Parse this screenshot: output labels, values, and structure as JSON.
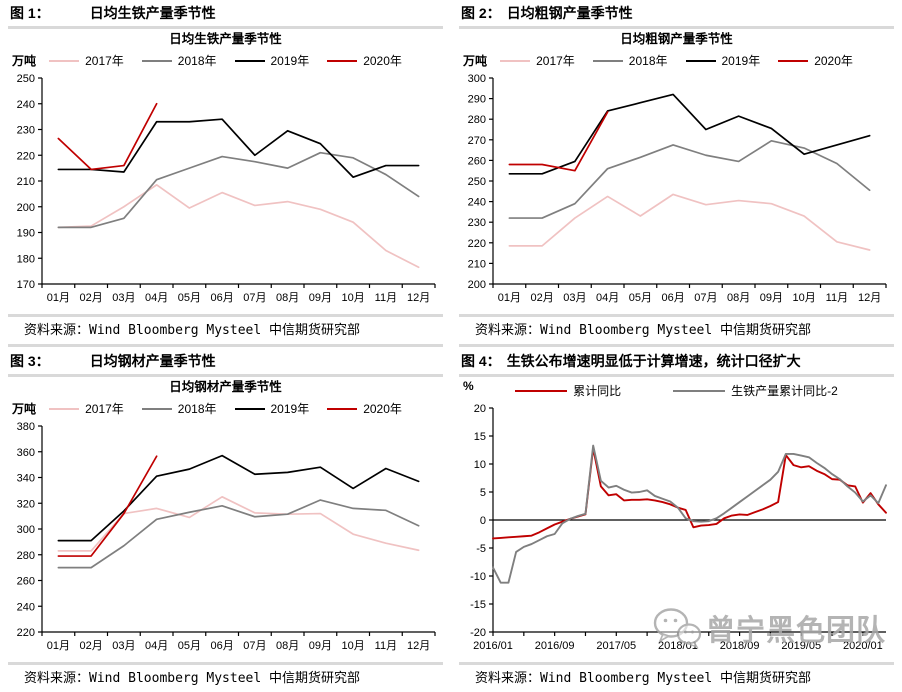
{
  "watermark": {
    "text": "曾宁黑色团队",
    "icon": "wechat-icon",
    "color": "#a8a8a8"
  },
  "colors": {
    "divider": "#d9d9d9",
    "axis": "#000000",
    "pink_2017": "#f0c2c2",
    "gray_2018": "#7f7f7f",
    "black_2019": "#000000",
    "red_2020": "#c00000"
  },
  "figures": [
    {
      "label": "图 1：",
      "title": "日均生铁产量季节性",
      "source": "资料来源：Wind Bloomberg Mysteel 中信期货研究部"
    },
    {
      "label": "图 2：",
      "title": "日均粗钢产量季节性",
      "source": "资料来源：Wind Bloomberg Mysteel 中信期货研究部"
    },
    {
      "label": "图 3：",
      "title": "日均钢材产量季节性",
      "source": "资料来源：Wind Bloomberg Mysteel 中信期货研究部"
    },
    {
      "label": "图 4：",
      "title": "生铁公布增速明显低于计算增速，统计口径扩大",
      "source": "资料来源：Wind Bloomberg Mysteel 中信期货研究部"
    }
  ],
  "chart_data": [
    {
      "type": "line",
      "title": "日均生铁产量季节性",
      "unit": "万吨",
      "ylim": [
        170,
        250
      ],
      "y_step": 10,
      "grid": false,
      "legend_position": "top",
      "categories": [
        "01月",
        "02月",
        "03月",
        "04月",
        "05月",
        "06月",
        "07月",
        "08月",
        "09月",
        "10月",
        "11月",
        "12月"
      ],
      "series": [
        {
          "name": "2017年",
          "color": "#f0c2c2",
          "values": [
            192,
            192.5,
            200,
            208.5,
            199.5,
            205.5,
            200.5,
            202,
            199,
            194,
            183,
            176.5
          ]
        },
        {
          "name": "2018年",
          "color": "#7f7f7f",
          "values": [
            192,
            192,
            195.5,
            210.5,
            215,
            219.5,
            217.5,
            215,
            221,
            219,
            212.5,
            204
          ]
        },
        {
          "name": "2019年",
          "color": "#000000",
          "values": [
            214.5,
            214.5,
            213.5,
            233,
            233,
            234,
            220,
            229.5,
            224.5,
            211.5,
            216,
            216
          ]
        },
        {
          "name": "2020年",
          "color": "#c00000",
          "values": [
            226.5,
            214.5,
            216,
            240
          ]
        }
      ]
    },
    {
      "type": "line",
      "title": "日均粗钢产量季节性",
      "unit": "万吨",
      "ylim": [
        200,
        300
      ],
      "y_step": 10,
      "grid": false,
      "legend_position": "top",
      "categories": [
        "01月",
        "02月",
        "03月",
        "04月",
        "05月",
        "06月",
        "07月",
        "08月",
        "09月",
        "10月",
        "11月",
        "12月"
      ],
      "series": [
        {
          "name": "2017年",
          "color": "#f0c2c2",
          "values": [
            218.5,
            218.5,
            232,
            242.5,
            233,
            243.5,
            238.5,
            240.5,
            239,
            233,
            220.5,
            216.5
          ]
        },
        {
          "name": "2018年",
          "color": "#7f7f7f",
          "values": [
            232,
            232,
            239,
            256,
            261.5,
            267.5,
            262.5,
            259.5,
            269.5,
            266,
            258.5,
            245.5
          ]
        },
        {
          "name": "2019年",
          "color": "#000000",
          "values": [
            253.5,
            253.5,
            259.5,
            284,
            288,
            292,
            275,
            281.5,
            275.5,
            263,
            267.5,
            272
          ]
        },
        {
          "name": "2020年",
          "color": "#c00000",
          "values": [
            258,
            258,
            255,
            283.5
          ]
        }
      ]
    },
    {
      "type": "line",
      "title": "日均钢材产量季节性",
      "unit": "万吨",
      "ylim": [
        220,
        380
      ],
      "y_step": 20,
      "grid": false,
      "legend_position": "top",
      "categories": [
        "01月",
        "02月",
        "03月",
        "04月",
        "05月",
        "06月",
        "07月",
        "08月",
        "09月",
        "10月",
        "11月",
        "12月"
      ],
      "series": [
        {
          "name": "2017年",
          "color": "#f0c2c2",
          "values": [
            283,
            283,
            312,
            316,
            309,
            325,
            312.5,
            311.5,
            312,
            296,
            289,
            283.5
          ]
        },
        {
          "name": "2018年",
          "color": "#7f7f7f",
          "values": [
            270,
            270,
            287,
            307.5,
            313,
            318,
            309.5,
            311.5,
            322.5,
            316,
            314.5,
            302.5
          ]
        },
        {
          "name": "2019年",
          "color": "#000000",
          "values": [
            291,
            291,
            314,
            341,
            346.5,
            357,
            342.5,
            344,
            348,
            331.5,
            347,
            337
          ]
        },
        {
          "name": "2020年",
          "color": "#c00000",
          "values": [
            279,
            279,
            312,
            356.5
          ]
        }
      ]
    },
    {
      "type": "line",
      "title": null,
      "unit": "%",
      "ylim": [
        -20,
        20
      ],
      "y_step": 5,
      "grid": false,
      "zero_line": true,
      "legend_position": "top",
      "n_points": 52,
      "x_minor_tick_every": 4,
      "x_labels": [
        "2016/01",
        "2016/09",
        "2017/05",
        "2018/01",
        "2018/09",
        "2019/05",
        "2020/01"
      ],
      "x_label_indices": [
        0,
        8,
        16,
        24,
        32,
        40,
        48
      ],
      "series": [
        {
          "name": "累计同比",
          "color": "#c00000",
          "width": 1.9,
          "values": [
            -3.3,
            -3.2,
            -3.1,
            -3.0,
            -2.9,
            -2.8,
            -2.2,
            -1.5,
            -0.8,
            -0.3,
            0.2,
            0.6,
            1.0,
            12.8,
            6.0,
            4.4,
            4.6,
            3.5,
            3.6,
            3.6,
            3.7,
            3.5,
            3.2,
            2.8,
            2.2,
            1.8,
            -1.3,
            -1.0,
            -0.9,
            -0.7,
            0.3,
            0.8,
            1.0,
            0.9,
            1.4,
            1.9,
            2.5,
            3.2,
            11.6,
            9.8,
            9.4,
            9.6,
            8.8,
            8.2,
            7.3,
            7.2,
            6.2,
            6.0,
            3.1,
            4.8,
            2.8,
            1.3
          ]
        },
        {
          "name": "生铁产量累计同比-2",
          "color": "#7f7f7f",
          "width": 1.9,
          "values": [
            -8.5,
            -11.2,
            -11.2,
            -5.7,
            -4.8,
            -4.3,
            -3.6,
            -2.9,
            -2.5,
            -0.6,
            0.2,
            0.7,
            1.1,
            13.3,
            7.0,
            5.8,
            6.1,
            5.4,
            4.9,
            5.0,
            5.3,
            4.3,
            3.8,
            3.3,
            2.2,
            0.3,
            -0.2,
            -0.3,
            -0.2,
            0.3,
            1.2,
            2.2,
            3.2,
            4.2,
            5.2,
            6.2,
            7.2,
            8.6,
            11.8,
            11.8,
            11.5,
            11.2,
            10.2,
            9.3,
            8.2,
            7.3,
            6.0,
            4.9,
            3.3,
            4.4,
            3.0,
            6.2
          ]
        }
      ]
    }
  ]
}
